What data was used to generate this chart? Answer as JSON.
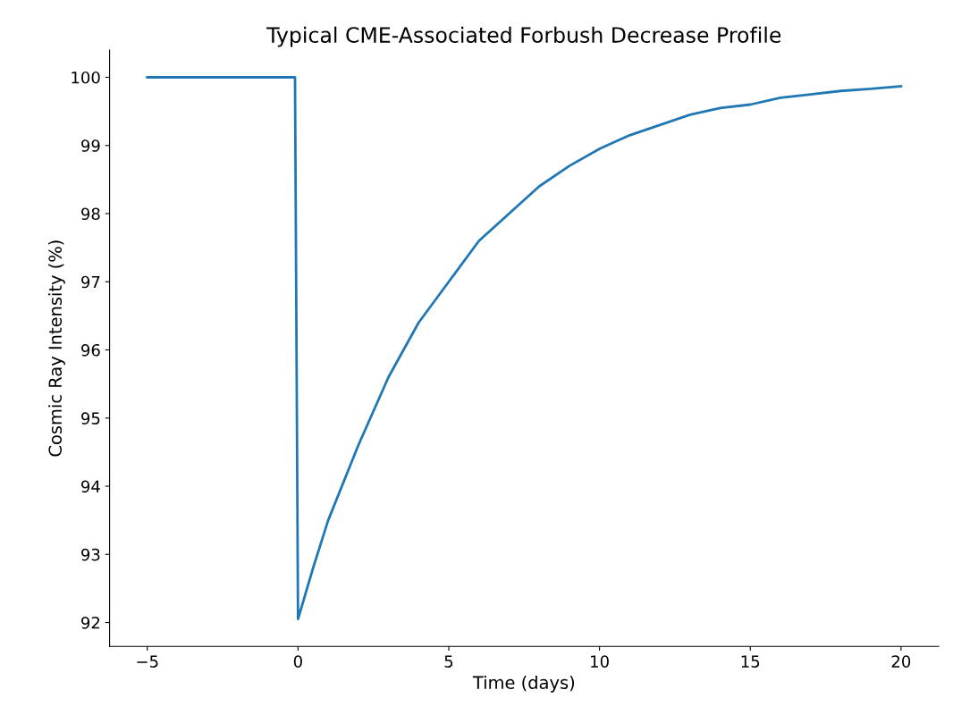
{
  "chart_data": {
    "type": "line",
    "title": "Typical CME-Associated Forbush Decrease Profile",
    "xlabel": "Time (days)",
    "ylabel": "Cosmic Ray Intensity (%)",
    "series": [
      {
        "color": "#1f77b4",
        "x": [
          -5,
          -0.1,
          0,
          0.5,
          1,
          2,
          3,
          4,
          5,
          6,
          7,
          8,
          9,
          10,
          11,
          12,
          13,
          14,
          15,
          16,
          17,
          18,
          19,
          20
        ],
        "values": [
          100,
          100,
          92.05,
          92.8,
          93.5,
          94.6,
          95.6,
          96.4,
          97.0,
          97.6,
          98.0,
          98.4,
          98.7,
          98.95,
          99.15,
          99.3,
          99.45,
          99.55,
          99.6,
          99.7,
          99.75,
          99.8,
          99.83,
          99.87
        ]
      }
    ],
    "xlim": [
      -6.25,
      21.25
    ],
    "ylim": [
      91.65,
      100.4
    ],
    "xticks": [
      {
        "value": -5,
        "label": "−5"
      },
      0,
      5,
      10,
      15,
      20
    ],
    "yticks": [
      92,
      93,
      94,
      95,
      96,
      97,
      98,
      99,
      100
    ],
    "grid": false,
    "legend": false,
    "marker": "none",
    "line_style": "solid"
  }
}
